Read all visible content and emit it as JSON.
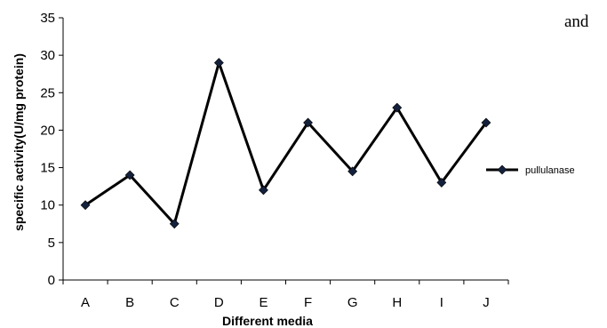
{
  "stray_text": "and",
  "chart_data": {
    "type": "line",
    "xlabel": "Different media",
    "ylabel": "specific activity(U/mg protein)",
    "ylim": [
      0,
      35
    ],
    "yticks": [
      0,
      5,
      10,
      15,
      20,
      25,
      30,
      35
    ],
    "grid": false,
    "legend_position": "right",
    "categories": [
      "A",
      "B",
      "C",
      "D",
      "E",
      "F",
      "G",
      "H",
      "I",
      "J"
    ],
    "series": [
      {
        "name": "pullulanase",
        "values": [
          10,
          14,
          7.5,
          29,
          12,
          21,
          14.5,
          23,
          13,
          21
        ],
        "color": "#000000",
        "marker": "diamond"
      }
    ]
  }
}
